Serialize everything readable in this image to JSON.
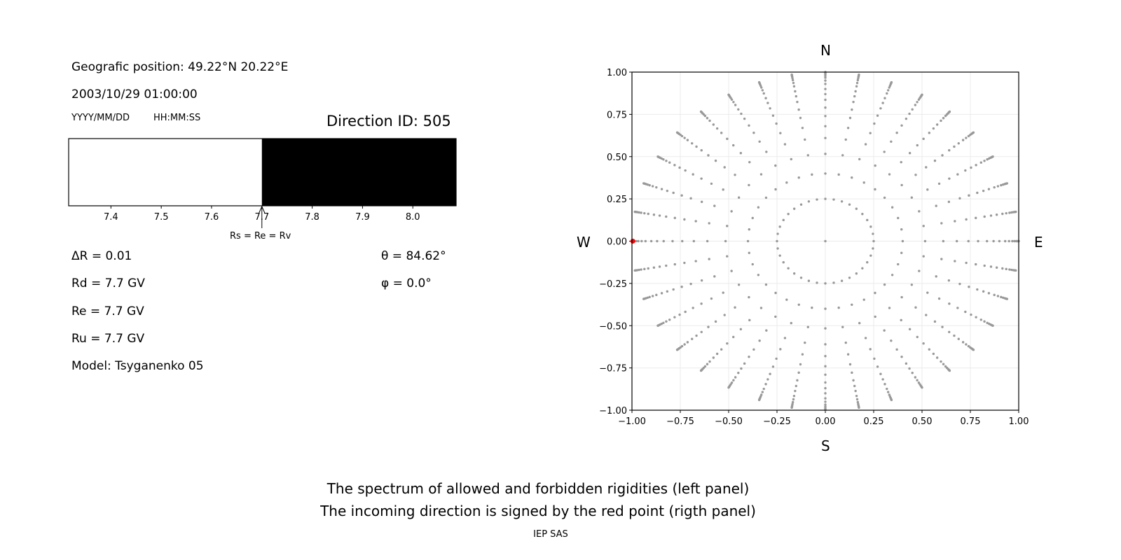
{
  "left_panel": {
    "position_text": "Geografic position: 49.22°N 20.22°E",
    "datetime_text": "2003/10/29 01:00:00",
    "date_format": "YYYY/MM/DD",
    "time_format": "HH:MM:SS",
    "direction_text": "Direction ID: 505",
    "annotation": "Rs = Re = Rv",
    "params": {
      "delta_r": "ΔR = 0.01",
      "rd": "Rd = 7.7 GV",
      "re": "Re = 7.7 GV",
      "ru": "Ru = 7.7 GV",
      "model": "Model: Tsyganenko 05",
      "theta": "θ = 84.62°",
      "phi": "φ = 0.0°"
    }
  },
  "right_panel": {
    "north": "N",
    "south": "S",
    "west": "W",
    "east": "E"
  },
  "caption": {
    "line1": "The spectrum of allowed and forbidden rigidities (left panel)",
    "line2": "The incoming direction is signed by the red point (rigth panel)",
    "credit": "IEP SAS"
  },
  "chart_data": [
    {
      "type": "bar",
      "xlim": [
        7.316,
        8.086
      ],
      "ticks": [
        "7.4",
        "7.5",
        "7.6",
        "7.7",
        "7.8",
        "7.9",
        "8.0"
      ],
      "segments": [
        {
          "from": 7.316,
          "to": 7.7,
          "state": "allowed",
          "color": "#ffffff"
        },
        {
          "from": 7.7,
          "to": 8.086,
          "state": "forbidden",
          "color": "#000000"
        }
      ],
      "annotation_at": 7.7
    },
    {
      "type": "scatter",
      "xlim": [
        -1,
        1
      ],
      "ylim": [
        -1,
        1
      ],
      "xticks": [
        "−1.00",
        "−0.75",
        "−0.50",
        "−0.25",
        "0.00",
        "0.25",
        "0.50",
        "0.75",
        "1.00"
      ],
      "yticks": [
        "−1.00",
        "−0.75",
        "−0.50",
        "−0.25",
        "0.00",
        "0.25",
        "0.50",
        "0.75",
        "1.00"
      ],
      "grid": true,
      "point_color": "#999999",
      "direction_grid": {
        "center": true,
        "inner_ring_radius": 0.25,
        "inner_ring_count": 36,
        "spoke_step_deg": 10,
        "spoke_radii": [
          0.4,
          0.516,
          0.61,
          0.68,
          0.74,
          0.79,
          0.836,
          0.87,
          0.9,
          0.93,
          0.95,
          0.967,
          0.978,
          0.987,
          0.993,
          0.997,
          1.0
        ]
      },
      "highlight": {
        "x": -0.9956,
        "y": 0.0,
        "color": "#ff0000"
      }
    }
  ]
}
